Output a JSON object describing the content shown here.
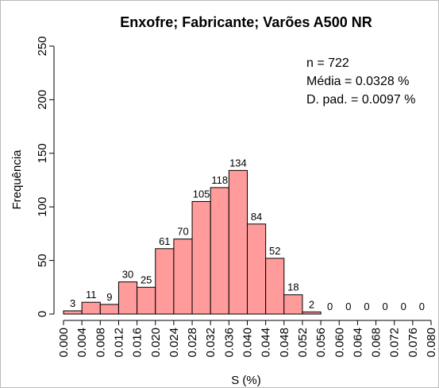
{
  "chart_data": {
    "type": "histogram",
    "title": "Enxofre; Fabricante; Varões A500 NR",
    "xlabel": "S (%)",
    "ylabel": "Frequência",
    "bins": [
      0,
      0.004,
      0.008,
      0.012,
      0.016,
      0.02,
      0.024,
      0.028,
      0.032,
      0.036,
      0.04,
      0.044,
      0.048,
      0.052,
      0.056,
      0.06,
      0.064,
      0.068,
      0.072,
      0.076,
      0.08
    ],
    "values": [
      3,
      11,
      9,
      30,
      25,
      61,
      70,
      105,
      118,
      134,
      84,
      52,
      18,
      2,
      0,
      0,
      0,
      0,
      0,
      0
    ],
    "color": "#ff9b9b",
    "annotations": [
      "n = 722",
      "Média = 0.0328 %",
      "D. pad. = 0.0097 %"
    ],
    "xlim": [
      0,
      0.08
    ],
    "xticks": [
      {
        "value": 0,
        "label": "0.000"
      },
      {
        "value": 0.004,
        "label": "0.004"
      },
      {
        "value": 0.008,
        "label": "0.008"
      },
      {
        "value": 0.012,
        "label": "0.012"
      },
      {
        "value": 0.016,
        "label": "0.016"
      },
      {
        "value": 0.02,
        "label": "0.020"
      },
      {
        "value": 0.024,
        "label": "0.024"
      },
      {
        "value": 0.028,
        "label": "0.028"
      },
      {
        "value": 0.032,
        "label": "0.032"
      },
      {
        "value": 0.036,
        "label": "0.036"
      },
      {
        "value": 0.04,
        "label": "0.040"
      },
      {
        "value": 0.044,
        "label": "0.044"
      },
      {
        "value": 0.048,
        "label": "0.048"
      },
      {
        "value": 0.052,
        "label": "0.052"
      },
      {
        "value": 0.056,
        "label": "0.056"
      },
      {
        "value": 0.06,
        "label": "0.060"
      },
      {
        "value": 0.064,
        "label": "0.064"
      },
      {
        "value": 0.068,
        "label": "0.068"
      },
      {
        "value": 0.072,
        "label": "0.072"
      },
      {
        "value": 0.076,
        "label": "0.076"
      },
      {
        "value": 0.08,
        "label": "0.080"
      }
    ],
    "ylim": [
      0,
      250
    ],
    "yticks": [
      0,
      50,
      100,
      150,
      200,
      250
    ]
  }
}
